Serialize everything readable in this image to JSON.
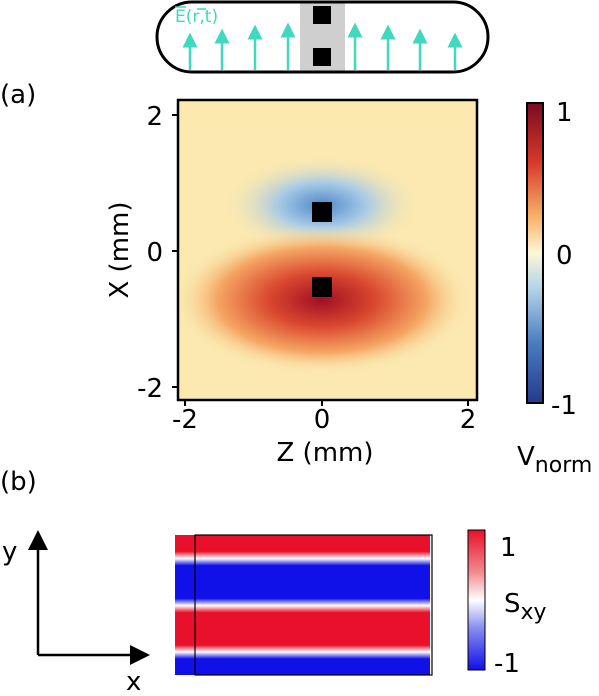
{
  "top": {
    "field_label": {
      "main": "E",
      "open": "(",
      "vector": "r",
      "rest": ",t)"
    }
  },
  "panel_a": {
    "label": "(a)",
    "y_axis": {
      "label": "X (mm)",
      "ticks": [
        "2",
        "0",
        "-2"
      ]
    },
    "x_axis": {
      "label": "Z (mm)",
      "ticks": [
        "-2",
        "0",
        "2"
      ]
    },
    "colorbar": {
      "ticks": [
        "1",
        "0",
        "-1"
      ],
      "label": {
        "main": "V",
        "sub": "norm"
      }
    }
  },
  "panel_b": {
    "label": "(b)",
    "axes": {
      "y": "y",
      "x": "x"
    },
    "colorbar": {
      "ticks": [
        "1",
        "-1"
      ],
      "label": {
        "main": "S",
        "sub": "xy"
      }
    }
  }
}
